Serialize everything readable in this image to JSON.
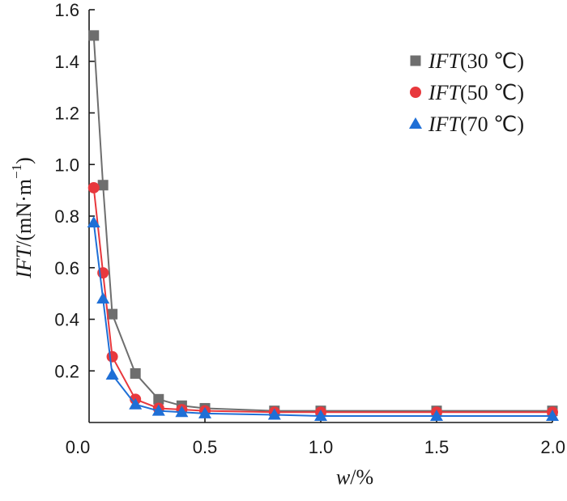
{
  "chart_data": {
    "type": "line",
    "x": [
      0.02,
      0.06,
      0.1,
      0.2,
      0.3,
      0.4,
      0.5,
      0.8,
      1.0,
      1.5,
      2.0
    ],
    "series": [
      {
        "name": "(30 ℃)",
        "name_prefix": "IFT",
        "color": "#6e6e6e",
        "marker": "square",
        "values": [
          1.5,
          0.92,
          0.42,
          0.19,
          0.09,
          0.065,
          0.055,
          0.045,
          0.045,
          0.045,
          0.045
        ]
      },
      {
        "name": "(50 ℃)",
        "name_prefix": "IFT",
        "color": "#e8383d",
        "marker": "circle",
        "values": [
          0.91,
          0.58,
          0.255,
          0.09,
          0.055,
          0.05,
          0.045,
          0.04,
          0.04,
          0.04,
          0.04
        ]
      },
      {
        "name": "(70 ℃)",
        "name_prefix": "IFT",
        "color": "#1f6fd6",
        "marker": "triangle",
        "values": [
          0.775,
          0.48,
          0.185,
          0.07,
          0.045,
          0.04,
          0.035,
          0.03,
          0.025,
          0.025,
          0.025
        ]
      }
    ],
    "xlabel": {
      "italic": "w",
      "rest": "/%"
    },
    "ylabel": {
      "italic": "IFT",
      "rest": "/(mN·m",
      "sup": "−1",
      "close": ")"
    },
    "xlim": [
      0,
      2.0
    ],
    "ylim": [
      0,
      1.6
    ],
    "x_ticks": [
      "0.0",
      "0.5",
      "1.0",
      "1.5",
      "2.0"
    ],
    "y_ticks": [
      "0.2",
      "0.4",
      "0.6",
      "0.8",
      "1.0",
      "1.2",
      "1.4",
      "1.6"
    ],
    "grid": false,
    "legend_position": "top-right"
  }
}
